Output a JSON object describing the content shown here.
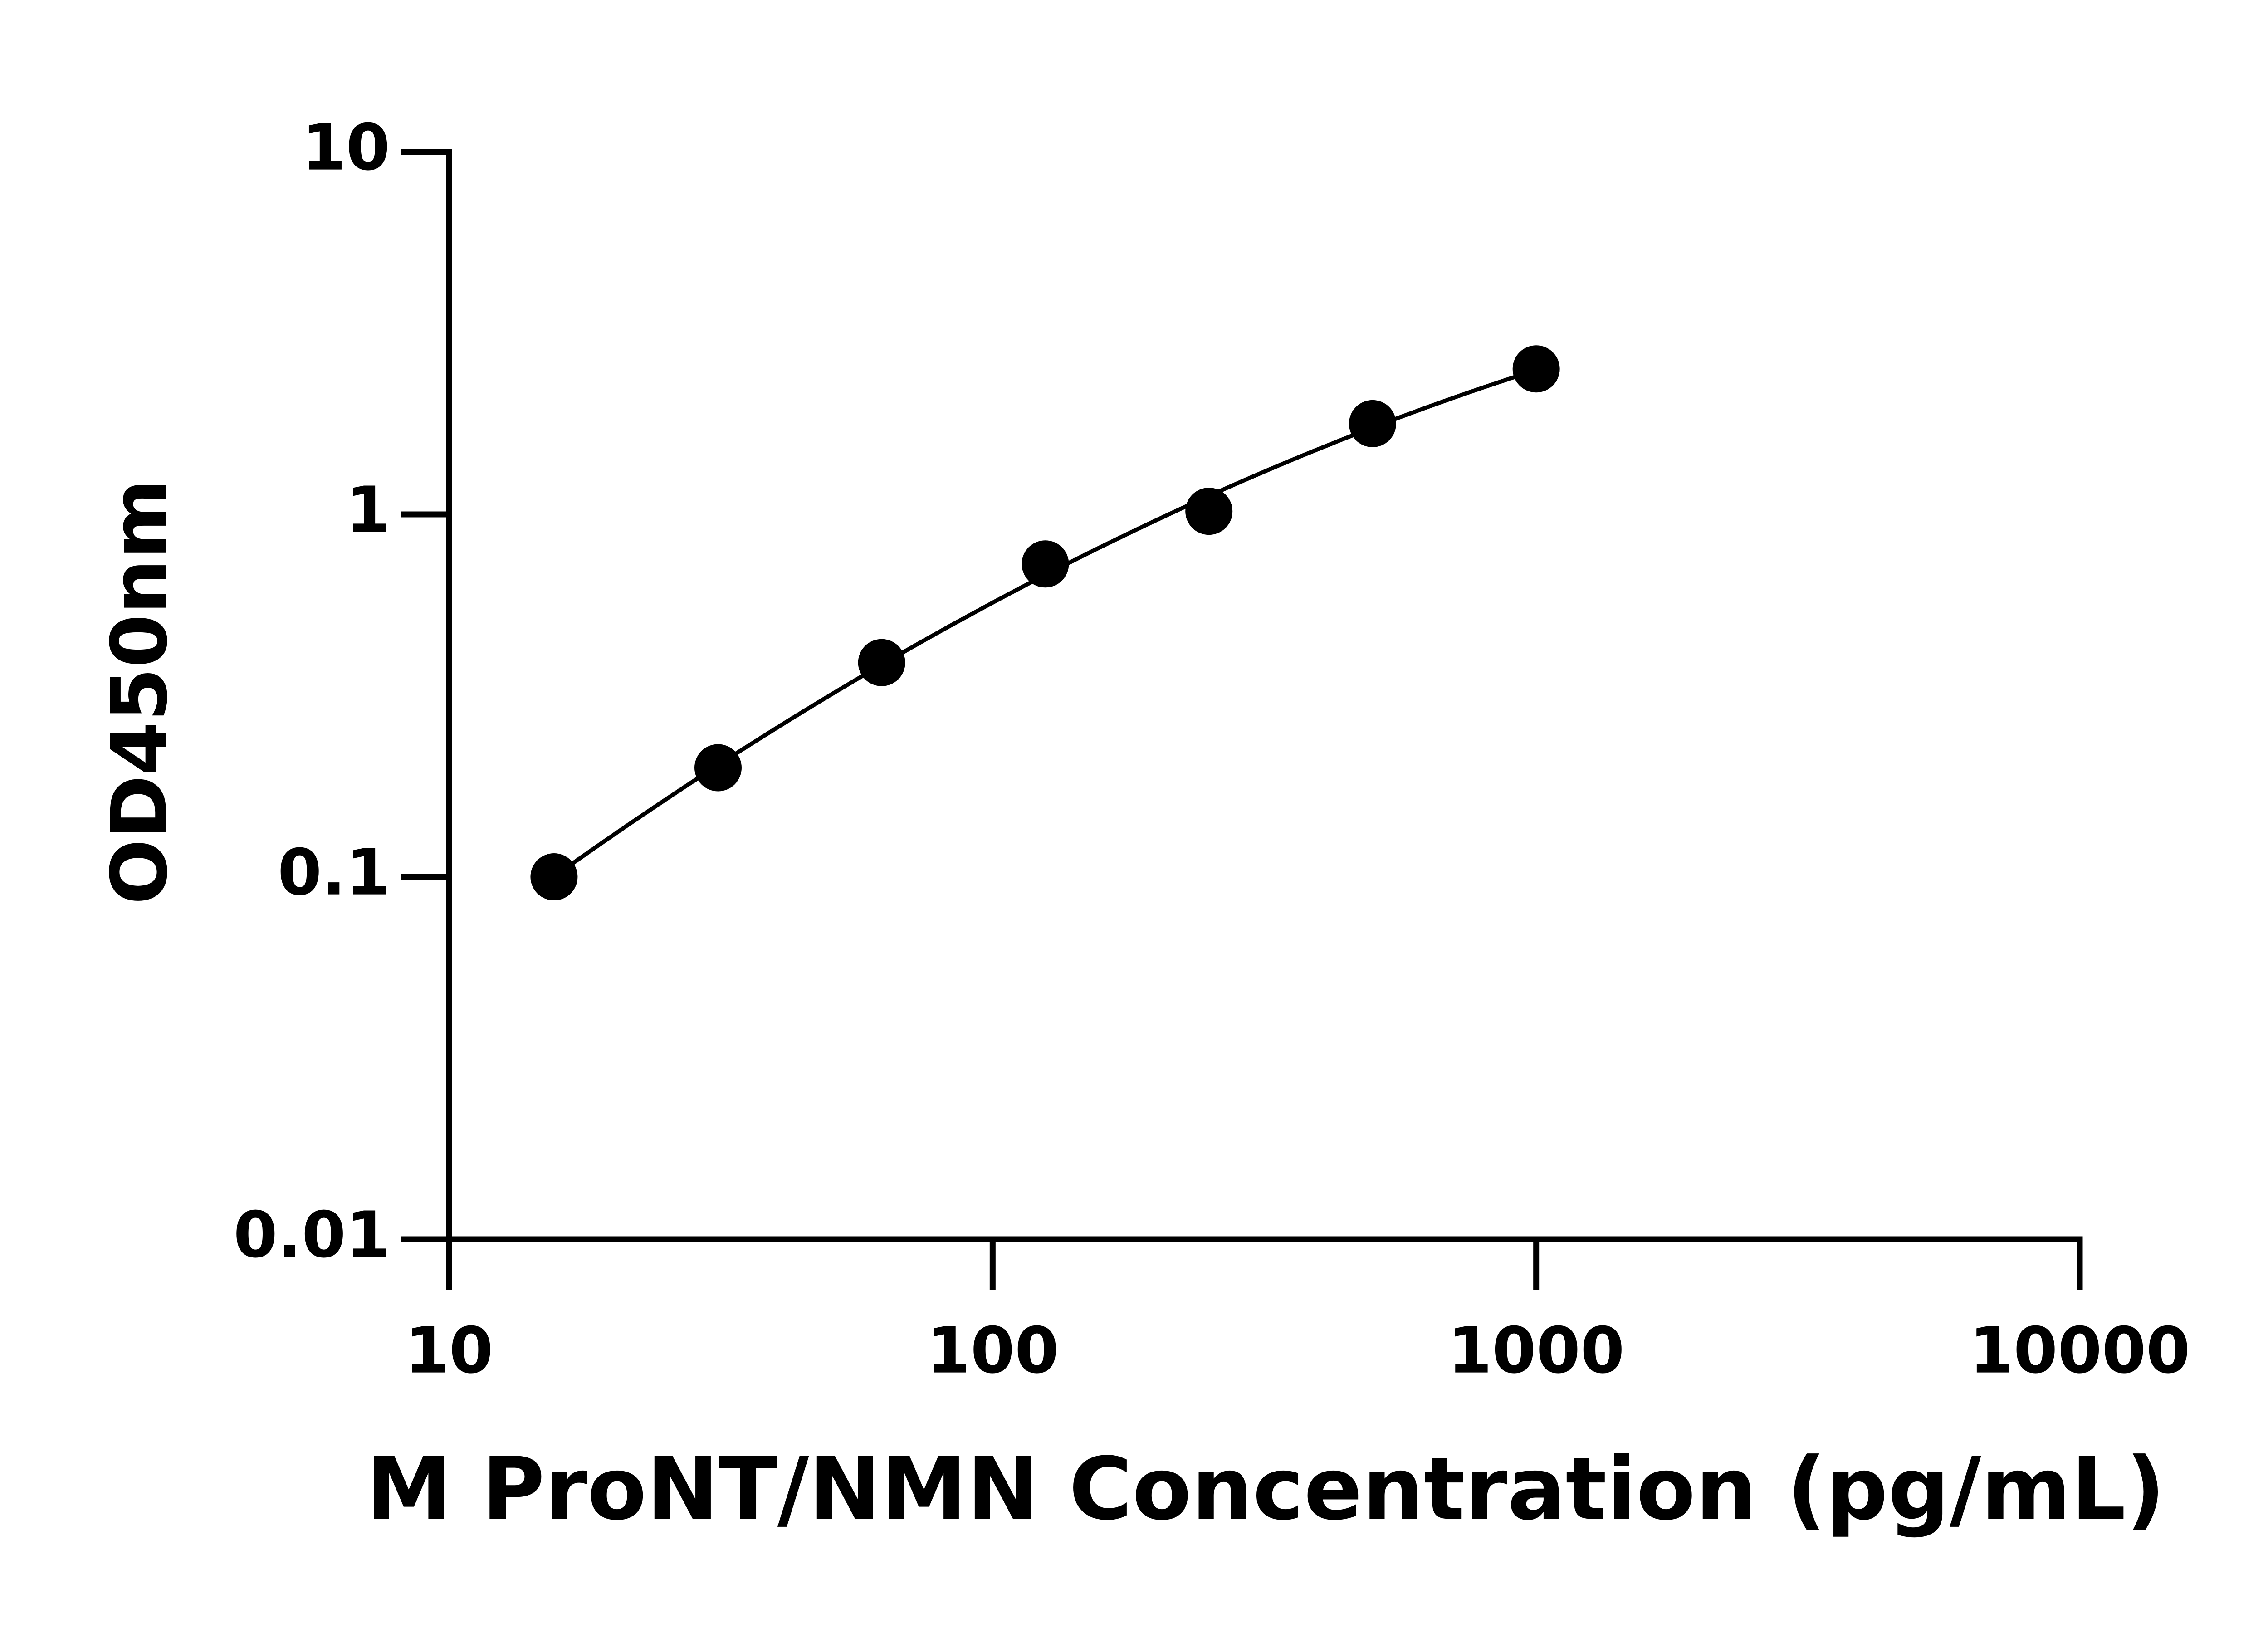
{
  "chart_data": {
    "type": "scatter",
    "x_label": "M ProNT/NMN Concentration (pg/mL)",
    "y_label": "OD450nm",
    "x": [
      15.6,
      31.25,
      62.5,
      125,
      250,
      500,
      1000
    ],
    "values": [
      0.1,
      0.2,
      0.39,
      0.73,
      1.02,
      1.78,
      2.52
    ],
    "color": "#000000",
    "xscale": "log",
    "yscale": "log",
    "xlim": [
      10,
      10000
    ],
    "ylim": [
      0.01,
      10
    ],
    "xticks": [
      10,
      100,
      1000,
      10000
    ],
    "yticks": [
      0.01,
      0.1,
      1,
      10
    ],
    "fit_line": true
  }
}
